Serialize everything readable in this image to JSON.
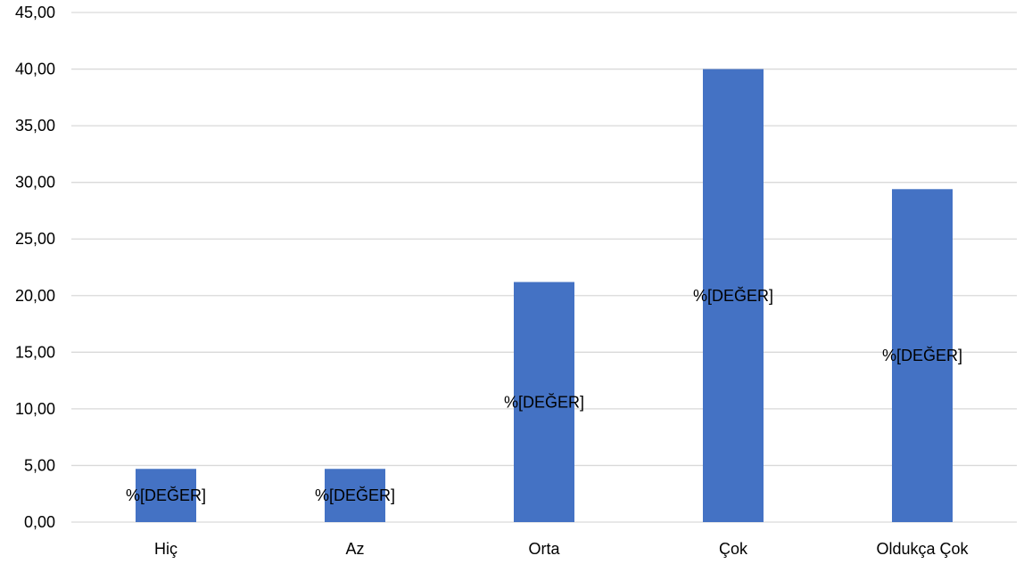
{
  "chart_data": {
    "type": "bar",
    "categories": [
      "Hiç",
      "Az",
      "Orta",
      "Çok",
      "Oldukça Çok"
    ],
    "values": [
      4.7,
      4.7,
      21.2,
      40.0,
      29.4
    ],
    "data_labels": [
      "%[DEĞER]",
      "%[DEĞER]",
      "%[DEĞER]",
      "%[DEĞER]",
      "%[DEĞER]"
    ],
    "yticks": [
      "0,00",
      "5,00",
      "10,00",
      "15,00",
      "20,00",
      "25,00",
      "30,00",
      "35,00",
      "40,00",
      "45,00"
    ],
    "ylim": [
      0,
      45
    ],
    "grid": true,
    "bar_color": "#4472c4",
    "grid_color": "#d9d9d9",
    "title": "",
    "xlabel": "",
    "ylabel": ""
  }
}
